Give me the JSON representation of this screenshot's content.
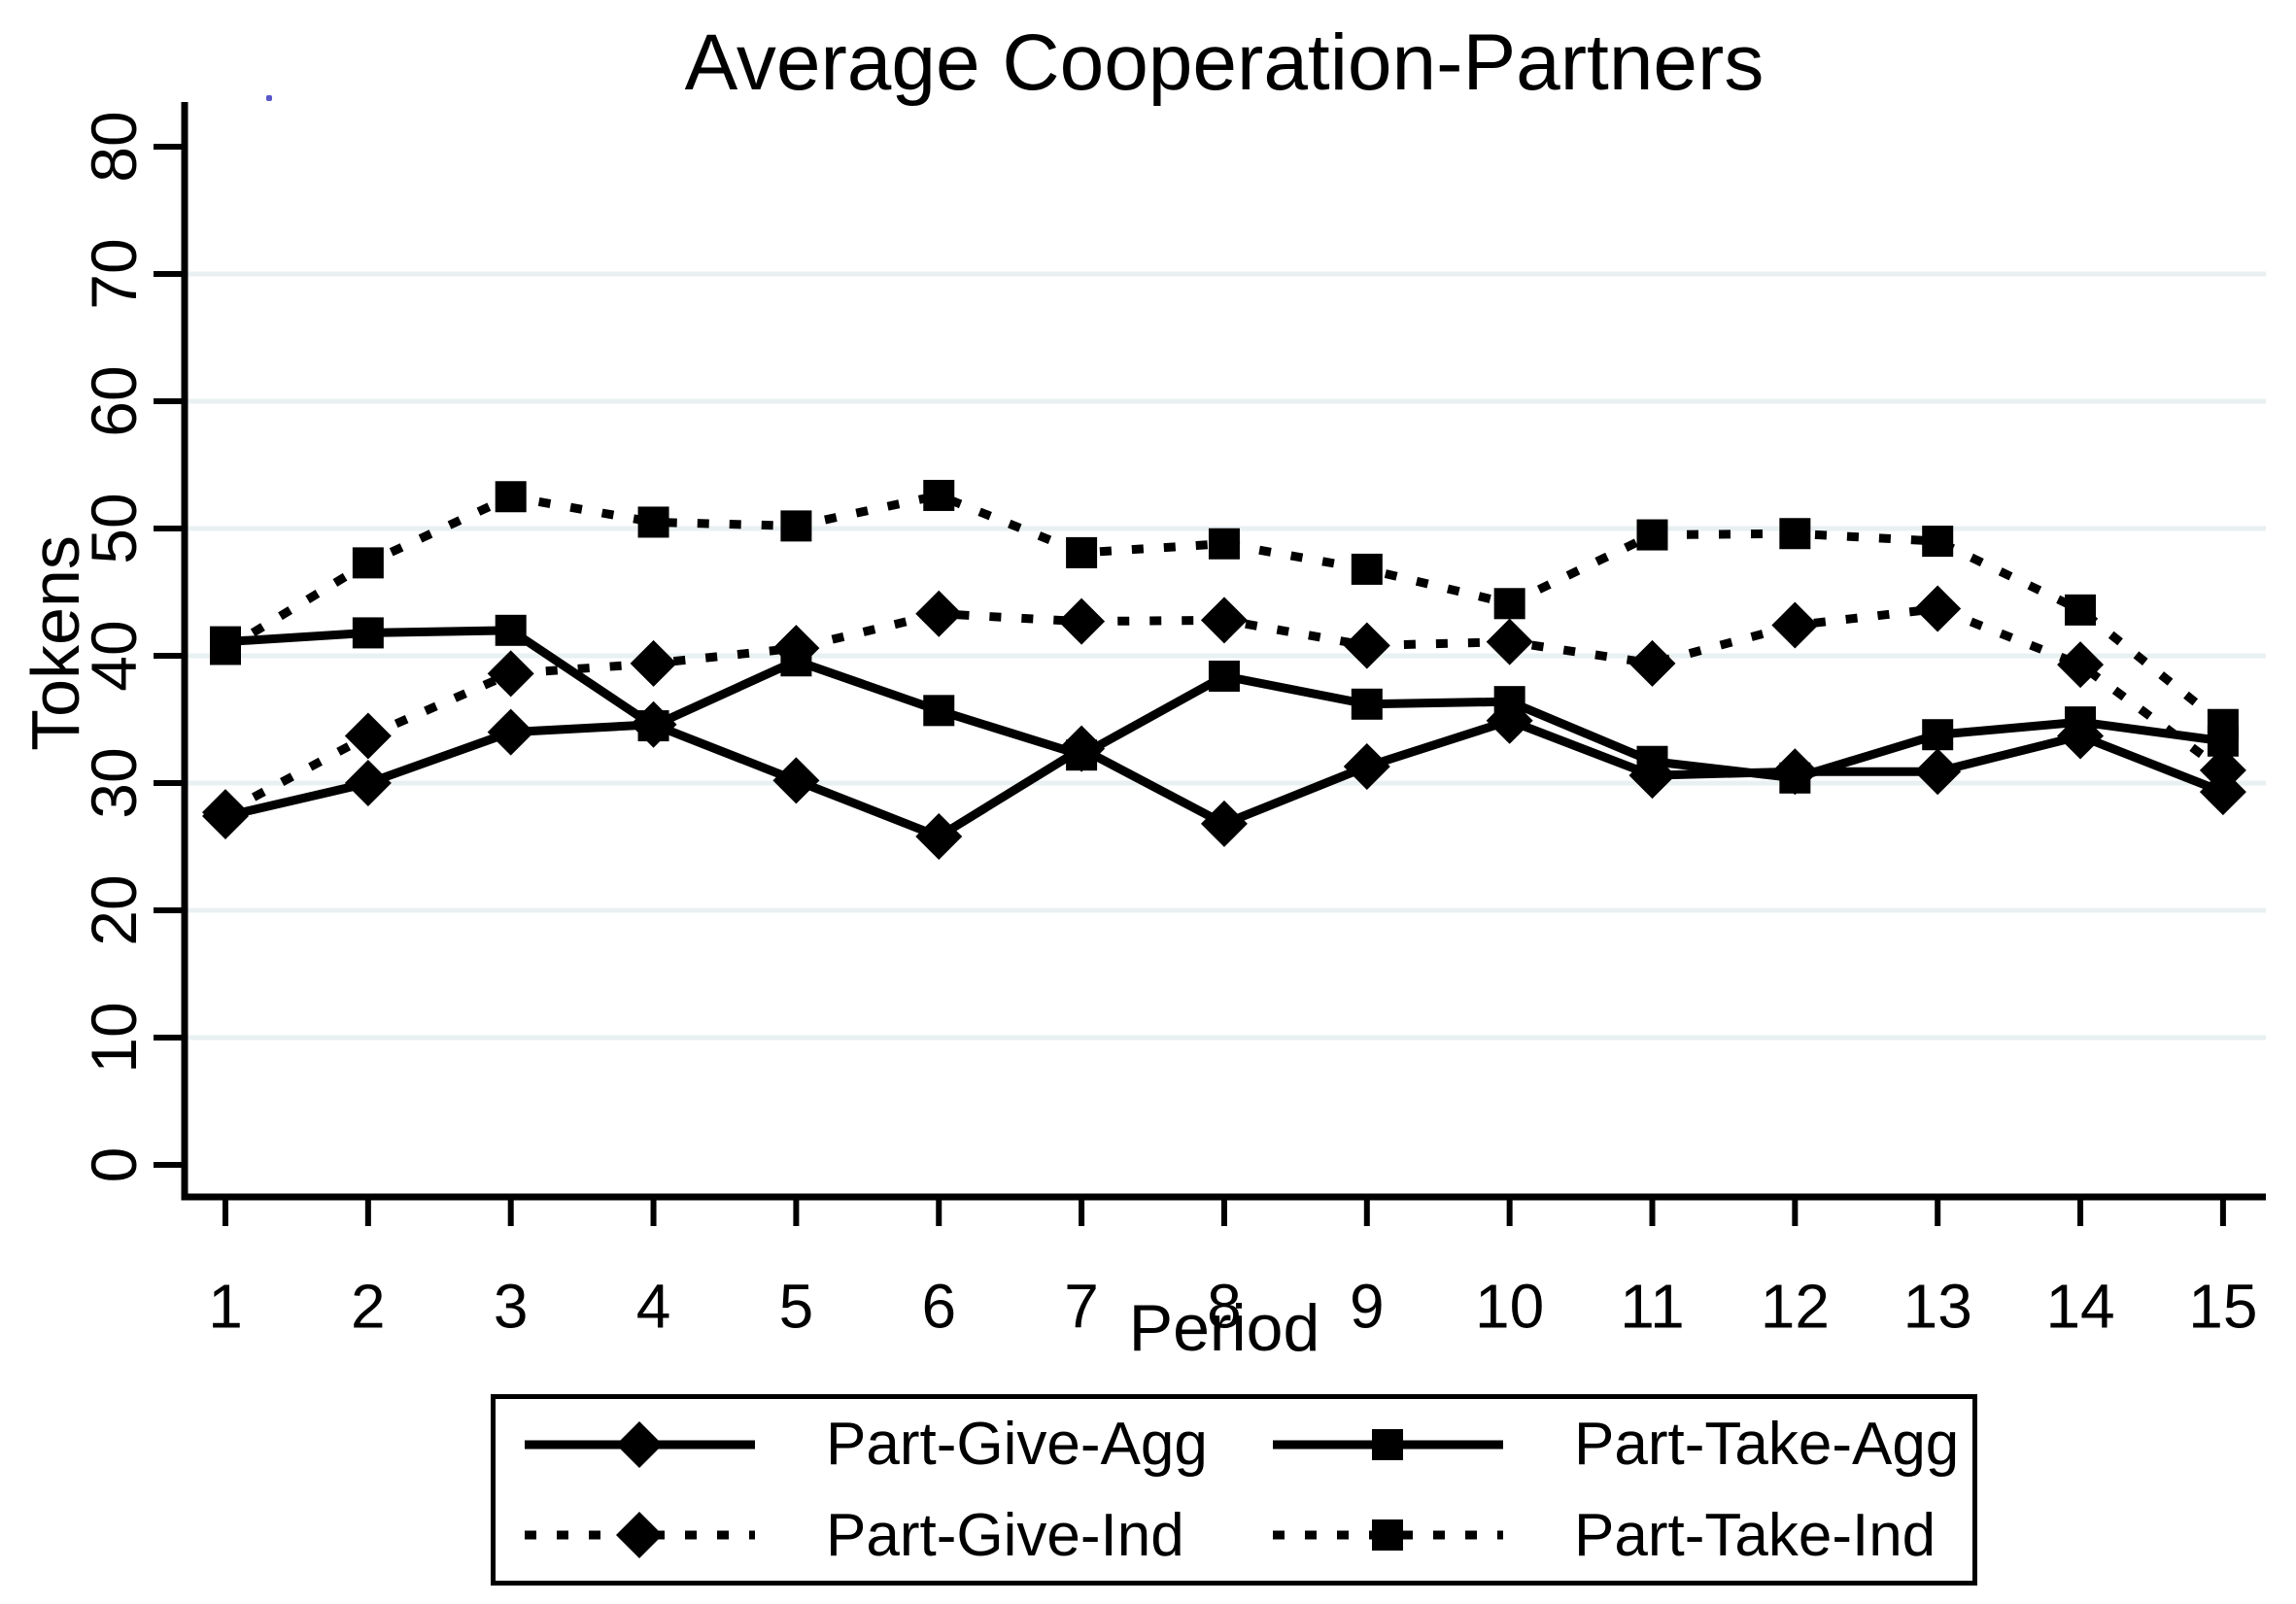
{
  "title": "Average Cooperation-Partners",
  "chart_data": {
    "type": "line",
    "title": "Average Cooperation-Partners",
    "xlabel": "Period",
    "ylabel": "Tokens",
    "x": [
      1,
      2,
      3,
      4,
      5,
      6,
      7,
      8,
      9,
      10,
      11,
      12,
      13,
      14,
      15
    ],
    "x_tick_labels": [
      "1",
      "2",
      "3",
      "4",
      "5",
      "6",
      "7",
      "8",
      "9",
      "10",
      "11",
      "12",
      "13",
      "14",
      "15"
    ],
    "y_tick_labels": [
      "0",
      "10",
      "20",
      "30",
      "40",
      "50",
      "60",
      "70",
      "80"
    ],
    "y_tick_values": [
      0,
      10,
      20,
      30,
      40,
      50,
      60,
      70,
      80
    ],
    "grid_values": [
      10,
      20,
      30,
      40,
      50,
      60,
      70
    ],
    "xlim": [
      1,
      15
    ],
    "ylim": [
      0,
      80
    ],
    "grid": "horizontal-only",
    "legend_position": "bottom-box",
    "series": [
      {
        "name": "Part-Give-Agg",
        "line": "solid",
        "marker": "diamond",
        "values": [
          27.4,
          30.0,
          34.0,
          34.6,
          30.2,
          25.8,
          32.7,
          26.8,
          31.3,
          34.9,
          30.6,
          30.9,
          30.9,
          33.7,
          29.3
        ]
      },
      {
        "name": "Part-Take-Agg",
        "line": "solid",
        "marker": "square",
        "values": [
          41.1,
          41.8,
          42.0,
          34.5,
          39.6,
          35.7,
          32.2,
          38.4,
          36.2,
          36.4,
          31.7,
          30.4,
          33.8,
          34.8,
          33.3
        ]
      },
      {
        "name": "Part-Give-Ind",
        "line": "dotted",
        "marker": "diamond",
        "values": [
          27.7,
          33.7,
          38.6,
          39.4,
          40.6,
          43.3,
          42.7,
          42.8,
          40.8,
          41.1,
          39.4,
          42.4,
          43.7,
          39.3,
          31.0
        ]
      },
      {
        "name": "Part-Take-Ind",
        "line": "dotted",
        "marker": "square",
        "values": [
          40.5,
          47.3,
          52.5,
          50.5,
          50.2,
          52.6,
          48.1,
          48.8,
          46.8,
          44.1,
          49.5,
          49.6,
          49.0,
          43.6,
          34.6
        ]
      }
    ],
    "colors": {
      "series": "#000000",
      "axis": "#000000",
      "grid": "#e9f0f2",
      "background": "#ffffff",
      "artifact_dot": "#5858c8"
    }
  },
  "legend": {
    "order": [
      0,
      1,
      2,
      3
    ]
  }
}
